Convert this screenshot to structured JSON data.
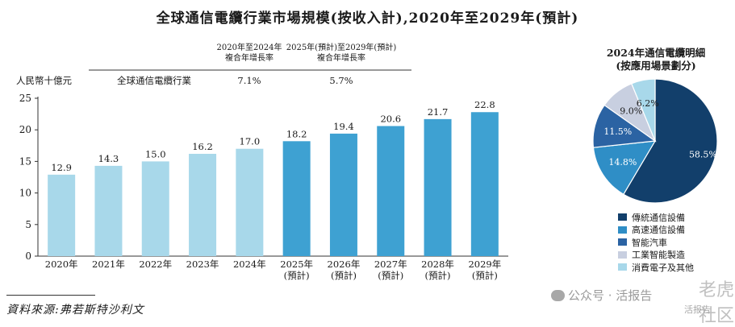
{
  "title": "全球通信電纜行業市場規模(按收入計),2020年至2029年(預計)",
  "source": "資料來源:弗若斯特沙利文",
  "watermark": {
    "main": "公众号 · 活报告",
    "big": "老虎社区",
    "sub": "活报告"
  },
  "cagr": {
    "header1": [
      "2020年至2024年",
      "複合年增長率"
    ],
    "header2": [
      "2025年(預計)至2029年(預計)",
      "複合年增長率"
    ],
    "row_label": "全球通信電纜行業",
    "value1": "7.1%",
    "value2": "5.7%"
  },
  "chart_data": [
    {
      "type": "bar",
      "ylabel": "人民幣十億元",
      "ylim": [
        0,
        25
      ],
      "yticks": [
        0,
        5,
        10,
        15,
        20,
        25
      ],
      "categories": [
        [
          "2020年"
        ],
        [
          "2021年"
        ],
        [
          "2022年"
        ],
        [
          "2023年"
        ],
        [
          "2024年"
        ],
        [
          "2025年",
          "(預計)"
        ],
        [
          "2026年",
          "(預計)"
        ],
        [
          "2027年",
          "(預計)"
        ],
        [
          "2028年",
          "(預計)"
        ],
        [
          "2029年",
          "(預計)"
        ]
      ],
      "values": [
        12.9,
        14.3,
        15.0,
        16.2,
        17.0,
        18.2,
        19.4,
        20.6,
        21.7,
        22.8
      ],
      "value_labels": [
        "12.9",
        "14.3",
        "15.0",
        "16.2",
        "17.0",
        "18.2",
        "19.4",
        "20.6",
        "21.7",
        "22.8"
      ],
      "colors": {
        "historical": "#a8d8ea",
        "forecast": "#3ea1d2"
      },
      "forecast_start_index": 5
    },
    {
      "type": "pie",
      "title": [
        "2024年通信電纜明細",
        "(按應用場景劃分)"
      ],
      "slices": [
        {
          "label": "傳統通信設備",
          "value": 58.5,
          "value_label": "58.5%",
          "color": "#123f6b"
        },
        {
          "label": "高速通信設備",
          "value": 14.8,
          "value_label": "14.8%",
          "color": "#2f8ec6"
        },
        {
          "label": "智能汽車",
          "value": 11.5,
          "value_label": "11.5%",
          "color": "#2b63a3"
        },
        {
          "label": "工業智能製造",
          "value": 9.0,
          "value_label": "9.0%",
          "color": "#c8cfe0"
        },
        {
          "label": "消費電子及其他",
          "value": 6.2,
          "value_label": "6.2%",
          "color": "#a8d8ea"
        }
      ]
    }
  ]
}
